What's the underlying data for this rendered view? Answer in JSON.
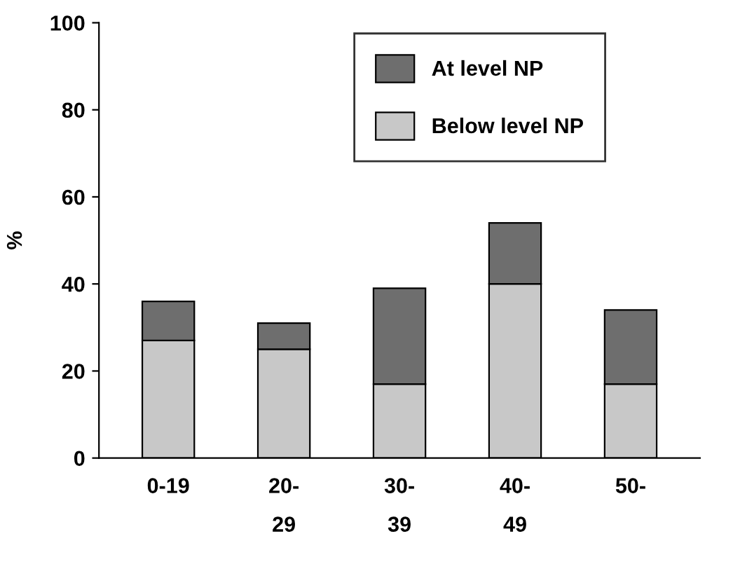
{
  "chart_data": {
    "type": "bar",
    "stacked": true,
    "ylabel": "%",
    "categories": [
      "0-19",
      "20-\n29",
      "30-\n39",
      "40-\n49",
      "50-"
    ],
    "series": [
      {
        "name": "Below level NP",
        "color": "#c8c8c8",
        "values": [
          27,
          25,
          17,
          40,
          17
        ]
      },
      {
        "name": "At level NP",
        "color": "#6e6e6e",
        "values": [
          9,
          6,
          22,
          14,
          17
        ]
      }
    ],
    "ylim": [
      0,
      100
    ],
    "yticks": [
      0,
      20,
      40,
      60,
      80,
      100
    ],
    "grid": false,
    "legend": "top right"
  }
}
